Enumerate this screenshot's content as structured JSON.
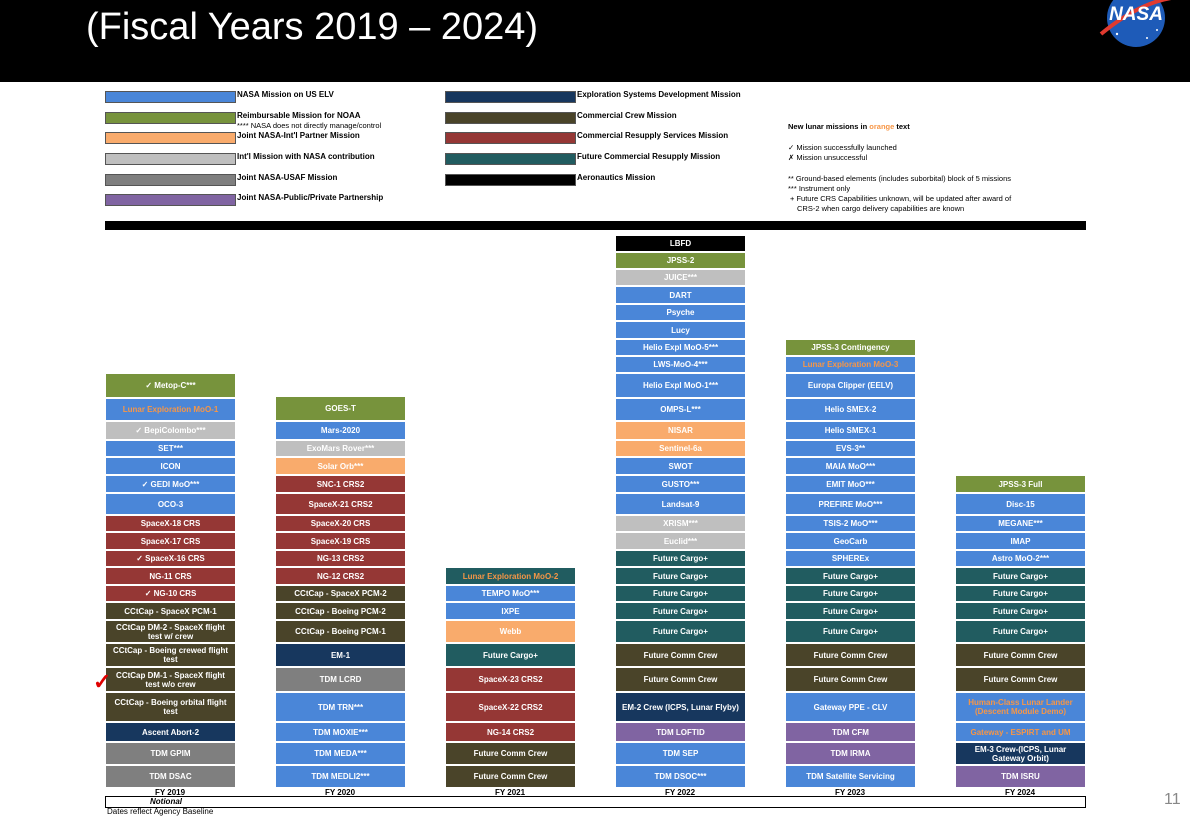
{
  "title": "(Fiscal Years 2019 – 2024)",
  "logo_text": "NASA",
  "colors": {
    "us_elv": "#4a86d8",
    "noaa": "#77933c",
    "intl_partner": "#f9ab6c",
    "intl_contrib": "#bfbfbf",
    "usaf": "#7f7f7f",
    "ppp": "#8064a2",
    "esd": "#17375e",
    "crew": "#4a4429",
    "crs": "#953735",
    "future_crs": "#215c60",
    "aero": "#000000",
    "orange_text": "#f79646"
  },
  "legend": {
    "us_elv": "NASA Mission on US ELV",
    "noaa": "Reimbursable Mission for NOAA",
    "noaa_note": "**** NASA does not directly manage/control",
    "intl_partner": "Joint NASA-Int'l Partner Mission",
    "intl_contrib": "Int'l Mission with NASA contribution",
    "usaf": "Joint NASA-USAF Mission",
    "ppp": "Joint NASA-Public/Private Partnership",
    "esd": "Exploration Systems Development Mission",
    "crew": "Commercial Crew Mission",
    "crs": "Commercial Resupply Services Mission",
    "future_crs": "Future Commercial Resupply Mission",
    "aero": "Aeronautics Mission"
  },
  "notes": {
    "lunar_prefix": "New lunar missions in ",
    "lunar_word": "orange",
    "lunar_suffix": " text",
    "success": "✓  Mission successfully launched",
    "failure": "✗  Mission unsuccessful",
    "ground": "** Ground-based elements (includes suborbital) block of 5 missions",
    "instrument": "*** Instrument only",
    "crs_future_1": "+ Future CRS Capabilities unknown, will be updated after award of",
    "crs_future_2": "CRS-2 when cargo delivery capabilities are known"
  },
  "years": [
    {
      "label": "FY 2019",
      "missions": [
        {
          "name": "✓ Metop-C***",
          "type": "noaa"
        },
        {
          "name": "Lunar Exploration MoO-1",
          "type": "us_elv",
          "orange": true
        },
        {
          "name": "✓ BepiColombo***",
          "type": "intl_contrib"
        },
        {
          "name": "SET***",
          "type": "us_elv"
        },
        {
          "name": "ICON",
          "type": "us_elv"
        },
        {
          "name": "✓ GEDI MoO***",
          "type": "us_elv"
        },
        {
          "name": "OCO-3",
          "type": "us_elv"
        },
        {
          "name": "SpaceX-18 CRS",
          "type": "crs"
        },
        {
          "name": "SpaceX-17 CRS",
          "type": "crs"
        },
        {
          "name": "✓ SpaceX-16 CRS",
          "type": "crs"
        },
        {
          "name": "NG-11 CRS",
          "type": "crs"
        },
        {
          "name": "✓ NG-10 CRS",
          "type": "crs"
        },
        {
          "name": "CCtCap - SpaceX PCM-1",
          "type": "crew"
        },
        {
          "name": "CCtCap DM-2 - SpaceX flight test w/ crew",
          "type": "crew"
        },
        {
          "name": "CCtCap - Boeing crewed flight test",
          "type": "crew"
        },
        {
          "name": "CCtCap DM-1 - SpaceX flight test w/o crew",
          "type": "crew"
        },
        {
          "name": "CCtCap - Boeing orbital flight test",
          "type": "crew"
        },
        {
          "name": "Ascent Abort-2",
          "type": "esd"
        },
        {
          "name": "TDM GPIM",
          "type": "usaf"
        },
        {
          "name": "TDM DSAC",
          "type": "usaf"
        }
      ]
    },
    {
      "label": "FY 2020",
      "missions": [
        {
          "name": "GOES-T",
          "type": "noaa"
        },
        {
          "name": "Mars-2020",
          "type": "us_elv"
        },
        {
          "name": "ExoMars Rover***",
          "type": "intl_contrib"
        },
        {
          "name": "Solar Orb***",
          "type": "intl_partner"
        },
        {
          "name": "SNC-1 CRS2",
          "type": "crs"
        },
        {
          "name": "SpaceX-21 CRS2",
          "type": "crs"
        },
        {
          "name": "SpaceX-20 CRS",
          "type": "crs"
        },
        {
          "name": "SpaceX-19 CRS",
          "type": "crs"
        },
        {
          "name": "NG-13 CRS2",
          "type": "crs"
        },
        {
          "name": "NG-12 CRS2",
          "type": "crs"
        },
        {
          "name": "CCtCap - SpaceX PCM-2",
          "type": "crew"
        },
        {
          "name": "CCtCap - Boeing PCM-2",
          "type": "crew"
        },
        {
          "name": "CCtCap - Boeing PCM-1",
          "type": "crew"
        },
        {
          "name": "EM-1",
          "type": "esd"
        },
        {
          "name": "TDM LCRD",
          "type": "usaf"
        },
        {
          "name": "TDM TRN***",
          "type": "us_elv"
        },
        {
          "name": "TDM MOXIE***",
          "type": "us_elv"
        },
        {
          "name": "TDM MEDA***",
          "type": "us_elv"
        },
        {
          "name": "TDM MEDLI2***",
          "type": "us_elv"
        }
      ]
    },
    {
      "label": "FY 2021",
      "missions": [
        {
          "name": "Lunar Exploration MoO-2",
          "type": "future_crs",
          "orange": true
        },
        {
          "name": "TEMPO MoO***",
          "type": "us_elv"
        },
        {
          "name": "IXPE",
          "type": "us_elv"
        },
        {
          "name": "Webb",
          "type": "intl_partner"
        },
        {
          "name": "Future Cargo+",
          "type": "future_crs"
        },
        {
          "name": "SpaceX-23 CRS2",
          "type": "crs"
        },
        {
          "name": "SpaceX-22 CRS2",
          "type": "crs"
        },
        {
          "name": "NG-14 CRS2",
          "type": "crs"
        },
        {
          "name": "Future Comm Crew",
          "type": "crew"
        },
        {
          "name": "Future Comm Crew",
          "type": "crew"
        }
      ]
    },
    {
      "label": "FY 2022",
      "missions": [
        {
          "name": "LBFD",
          "type": "aero"
        },
        {
          "name": "JPSS-2",
          "type": "noaa"
        },
        {
          "name": "JUICE***",
          "type": "intl_contrib"
        },
        {
          "name": "DART",
          "type": "us_elv"
        },
        {
          "name": "Psyche",
          "type": "us_elv"
        },
        {
          "name": "Lucy",
          "type": "us_elv"
        },
        {
          "name": "Helio Expl MoO-5***",
          "type": "us_elv"
        },
        {
          "name": "LWS-MoO-4***",
          "type": "us_elv"
        },
        {
          "name": "Helio Expl MoO-1***",
          "type": "us_elv"
        },
        {
          "name": "OMPS-L***",
          "type": "us_elv"
        },
        {
          "name": "NISAR",
          "type": "intl_partner"
        },
        {
          "name": "Sentinel-6a",
          "type": "intl_partner"
        },
        {
          "name": "SWOT",
          "type": "us_elv"
        },
        {
          "name": "GUSTO***",
          "type": "us_elv"
        },
        {
          "name": "Landsat-9",
          "type": "us_elv"
        },
        {
          "name": "XRISM***",
          "type": "intl_contrib"
        },
        {
          "name": "Euclid***",
          "type": "intl_contrib"
        },
        {
          "name": "Future Cargo+",
          "type": "future_crs"
        },
        {
          "name": "Future Cargo+",
          "type": "future_crs"
        },
        {
          "name": "Future Cargo+",
          "type": "future_crs"
        },
        {
          "name": "Future Cargo+",
          "type": "future_crs"
        },
        {
          "name": "Future Cargo+",
          "type": "future_crs"
        },
        {
          "name": "Future Comm Crew",
          "type": "crew"
        },
        {
          "name": "Future Comm Crew",
          "type": "crew"
        },
        {
          "name": "EM-2 Crew (ICPS, Lunar Flyby)",
          "type": "esd"
        },
        {
          "name": "TDM LOFTID",
          "type": "ppp"
        },
        {
          "name": "TDM SEP",
          "type": "us_elv"
        },
        {
          "name": "TDM DSOC***",
          "type": "us_elv"
        }
      ]
    },
    {
      "label": "FY 2023",
      "missions": [
        {
          "name": "JPSS-3 Contingency",
          "type": "noaa"
        },
        {
          "name": "Lunar Exploration MoO-3",
          "type": "us_elv",
          "orange": true
        },
        {
          "name": "Europa Clipper (EELV)",
          "type": "us_elv"
        },
        {
          "name": "Helio SMEX-2",
          "type": "us_elv"
        },
        {
          "name": "Helio SMEX-1",
          "type": "us_elv"
        },
        {
          "name": "EVS-3**",
          "type": "us_elv"
        },
        {
          "name": "MAIA MoO***",
          "type": "us_elv"
        },
        {
          "name": "EMIT MoO***",
          "type": "us_elv"
        },
        {
          "name": "PREFIRE MoO***",
          "type": "us_elv"
        },
        {
          "name": "TSIS-2 MoO***",
          "type": "us_elv"
        },
        {
          "name": "GeoCarb",
          "type": "us_elv"
        },
        {
          "name": "SPHEREx",
          "type": "us_elv"
        },
        {
          "name": "Future Cargo+",
          "type": "future_crs"
        },
        {
          "name": "Future Cargo+",
          "type": "future_crs"
        },
        {
          "name": "Future Cargo+",
          "type": "future_crs"
        },
        {
          "name": "Future Cargo+",
          "type": "future_crs"
        },
        {
          "name": "Future Comm Crew",
          "type": "crew"
        },
        {
          "name": "Future Comm Crew",
          "type": "crew"
        },
        {
          "name": "Gateway PPE - CLV",
          "type": "us_elv"
        },
        {
          "name": "TDM CFM",
          "type": "ppp"
        },
        {
          "name": "TDM IRMA",
          "type": "ppp"
        },
        {
          "name": "TDM Satellite Servicing",
          "type": "us_elv"
        }
      ]
    },
    {
      "label": "FY 2024",
      "missions": [
        {
          "name": "JPSS-3 Full",
          "type": "noaa"
        },
        {
          "name": "Disc-15",
          "type": "us_elv"
        },
        {
          "name": "MEGANE***",
          "type": "us_elv"
        },
        {
          "name": "IMAP",
          "type": "us_elv"
        },
        {
          "name": "Astro MoO-2***",
          "type": "us_elv"
        },
        {
          "name": "Future Cargo+",
          "type": "future_crs"
        },
        {
          "name": "Future Cargo+",
          "type": "future_crs"
        },
        {
          "name": "Future Cargo+",
          "type": "future_crs"
        },
        {
          "name": "Future Cargo+",
          "type": "future_crs"
        },
        {
          "name": "Future Comm Crew",
          "type": "crew"
        },
        {
          "name": "Future Comm Crew",
          "type": "crew"
        },
        {
          "name": "Human-Class Lunar Lander (Descent Module Demo)",
          "type": "us_elv",
          "orange": true
        },
        {
          "name": "Gateway - ESPIRT and UM",
          "type": "us_elv",
          "orange": true
        },
        {
          "name": "EM-3 Crew-(ICPS, Lunar Gateway Orbit)",
          "type": "esd"
        },
        {
          "name": "TDM ISRU",
          "type": "ppp"
        }
      ]
    }
  ],
  "notional": "Notional",
  "dates_note": "Dates reflect Agency Baseline",
  "page_number": "11"
}
